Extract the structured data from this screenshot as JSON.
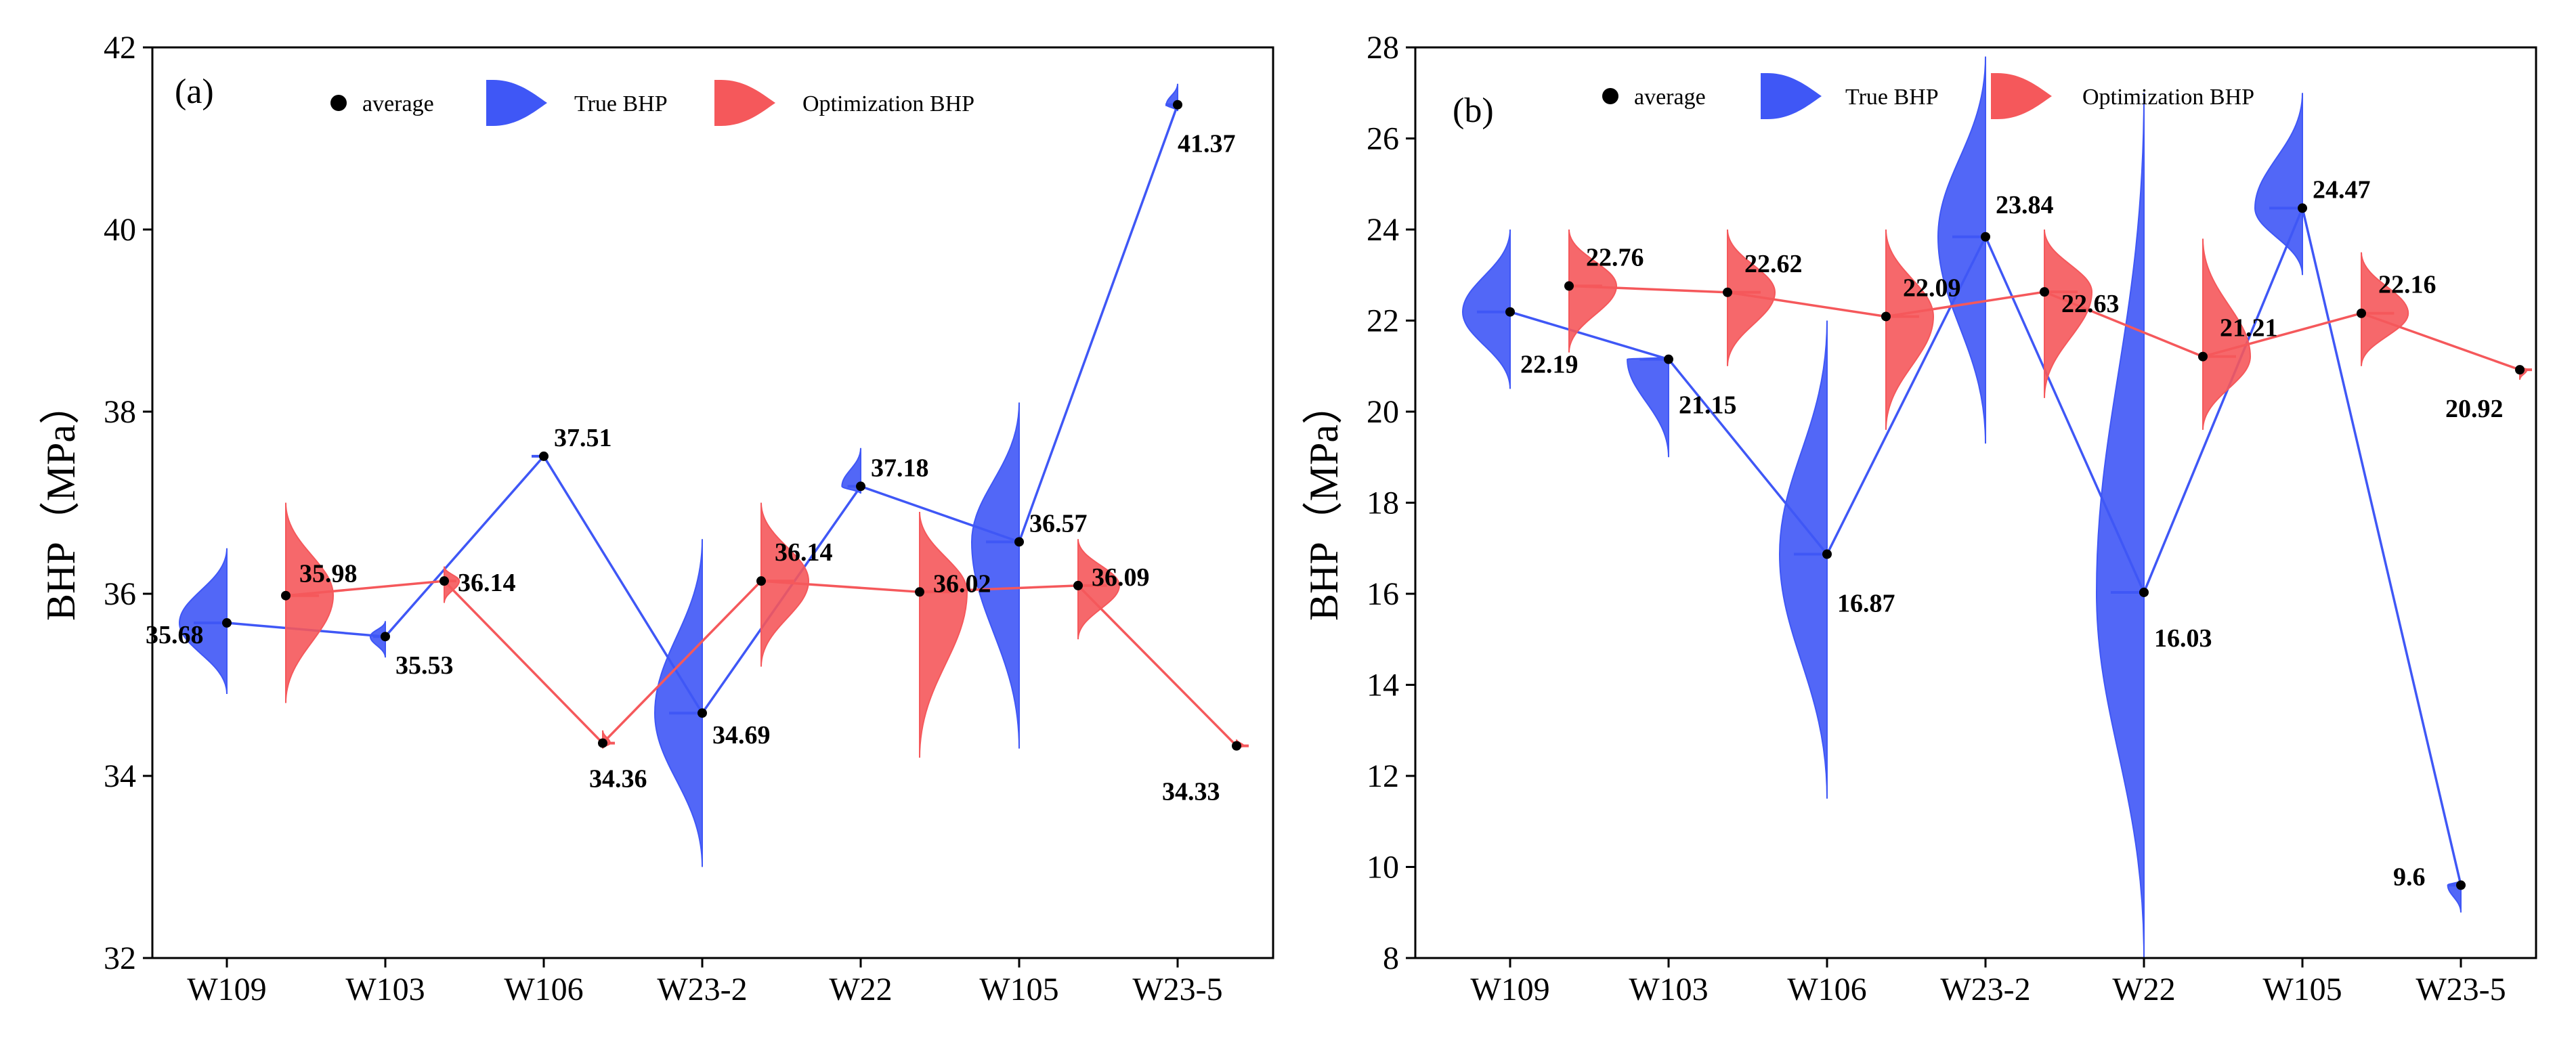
{
  "colors": {
    "true": "#3f57f6",
    "opt": "#f5585b",
    "avg": "#000000",
    "frame": "#000000"
  },
  "chart_data": [
    {
      "type": "violin",
      "panel_label": "(a)",
      "ylabel": "BHP（MPa）",
      "xlabel": "",
      "categories": [
        "W109",
        "W103",
        "W106",
        "W23-2",
        "W22",
        "W105",
        "W23-5"
      ],
      "ylim": [
        32,
        42
      ],
      "yticks": [
        "32",
        "34",
        "36",
        "38",
        "40",
        "42"
      ],
      "legend": {
        "average": "average",
        "true": "True BHP",
        "opt": "Optimization BHP",
        "placement": "top"
      },
      "series": [
        {
          "name": "True BHP",
          "key": "true",
          "values": [
            35.68,
            35.53,
            37.51,
            34.69,
            37.18,
            36.57,
            41.37
          ],
          "labels": [
            "35.68",
            "35.53",
            "37.51",
            "34.69",
            "37.18",
            "36.57",
            "41.37"
          ],
          "ranges": [
            [
              34.9,
              36.5
            ],
            [
              35.3,
              35.7
            ],
            [
              37.5,
              37.5
            ],
            [
              33.0,
              36.6
            ],
            [
              37.1,
              37.6
            ],
            [
              34.3,
              38.1
            ],
            [
              41.3,
              41.6
            ]
          ]
        },
        {
          "name": "Optimization BHP",
          "key": "opt",
          "values": [
            35.98,
            36.14,
            34.36,
            36.14,
            36.02,
            36.09,
            34.33
          ],
          "labels": [
            "35.98",
            "36.14",
            "34.36",
            "36.14",
            "36.02",
            "36.09",
            "34.33"
          ],
          "ranges": [
            [
              34.8,
              37.0
            ],
            [
              35.9,
              36.3
            ],
            [
              34.3,
              34.5
            ],
            [
              35.2,
              37.0
            ],
            [
              34.2,
              36.9
            ],
            [
              35.5,
              36.6
            ],
            [
              34.3,
              34.4
            ]
          ]
        }
      ]
    },
    {
      "type": "violin",
      "panel_label": "(b)",
      "ylabel": "BHP（MPa）",
      "xlabel": "",
      "categories": [
        "W109",
        "W103",
        "W106",
        "W23-2",
        "W22",
        "W105",
        "W23-5"
      ],
      "ylim": [
        8,
        28
      ],
      "yticks": [
        "8",
        "10",
        "12",
        "14",
        "16",
        "18",
        "20",
        "22",
        "24",
        "26",
        "28"
      ],
      "legend": {
        "average": "average",
        "true": "True BHP",
        "opt": "Optimization BHP",
        "placement": "top"
      },
      "series": [
        {
          "name": "True BHP",
          "key": "true",
          "values": [
            22.19,
            21.15,
            16.87,
            23.84,
            16.03,
            24.47,
            9.6
          ],
          "labels": [
            "22.19",
            "21.15",
            "16.87",
            "23.84",
            "16.03",
            "24.47",
            "9.6"
          ],
          "ranges": [
            [
              20.5,
              24.0
            ],
            [
              19.0,
              21.2
            ],
            [
              11.5,
              22.0
            ],
            [
              19.3,
              27.8
            ],
            [
              8.0,
              27.0
            ],
            [
              23.0,
              27.0
            ],
            [
              9.0,
              9.7
            ]
          ]
        },
        {
          "name": "Optimization BHP",
          "key": "opt",
          "values": [
            22.76,
            22.62,
            22.09,
            22.63,
            21.21,
            22.16,
            20.92
          ],
          "labels": [
            "22.76",
            "22.62",
            "22.09",
            "22.63",
            "21.21",
            "22.16",
            "20.92"
          ],
          "ranges": [
            [
              21.3,
              24.0
            ],
            [
              21.0,
              24.0
            ],
            [
              19.6,
              24.0
            ],
            [
              20.3,
              24.0
            ],
            [
              19.6,
              23.8
            ],
            [
              21.0,
              23.5
            ],
            [
              20.7,
              21.0
            ]
          ]
        }
      ]
    }
  ]
}
